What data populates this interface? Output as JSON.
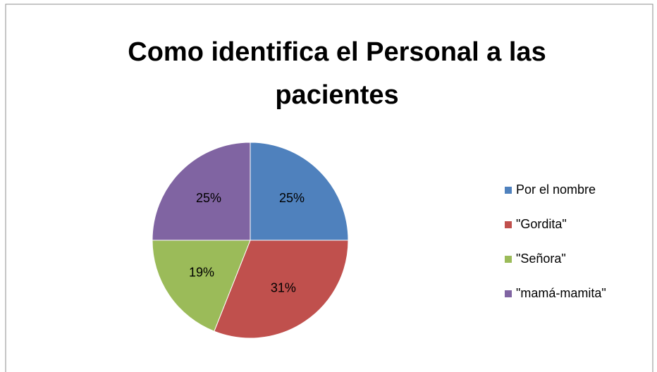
{
  "chart_data": {
    "type": "pie",
    "title": "Como identifica el Personal a las pacientes",
    "categories": [
      "Por el nombre",
      "\"Gordita\"",
      "\"Señora\"",
      "\"mamá-mamita\""
    ],
    "values": [
      25,
      31,
      19,
      25
    ],
    "value_labels": [
      "25%",
      "31%",
      "19%",
      "25%"
    ],
    "colors": [
      "#4f81bd",
      "#c0504d",
      "#9bbb59",
      "#8064a2"
    ],
    "legend": "right"
  }
}
